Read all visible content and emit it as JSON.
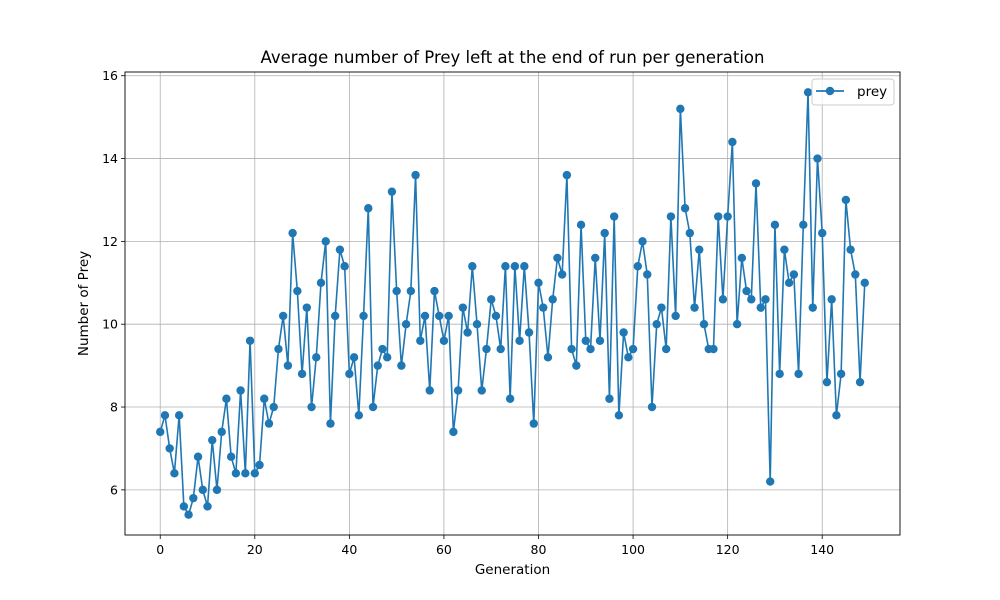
{
  "chart_data": {
    "type": "line",
    "title": "Average number of Prey left at the end of run per generation",
    "xlabel": "Generation",
    "ylabel": "Number of Prey",
    "xlim": [
      -7.45,
      156.45
    ],
    "ylim": [
      4.91,
      16.09
    ],
    "xticks": [
      0,
      20,
      40,
      60,
      80,
      100,
      120,
      140
    ],
    "yticks": [
      6,
      8,
      10,
      12,
      14,
      16
    ],
    "grid": true,
    "legend_position": "upper right",
    "series": [
      {
        "name": "prey",
        "color": "#1f77b4",
        "marker": "circle",
        "x": [
          0,
          1,
          2,
          3,
          4,
          5,
          6,
          7,
          8,
          9,
          10,
          11,
          12,
          13,
          14,
          15,
          16,
          17,
          18,
          19,
          20,
          21,
          22,
          23,
          24,
          25,
          26,
          27,
          28,
          29,
          30,
          31,
          32,
          33,
          34,
          35,
          36,
          37,
          38,
          39,
          40,
          41,
          42,
          43,
          44,
          45,
          46,
          47,
          48,
          49,
          50,
          51,
          52,
          53,
          54,
          55,
          56,
          57,
          58,
          59,
          60,
          61,
          62,
          63,
          64,
          65,
          66,
          67,
          68,
          69,
          70,
          71,
          72,
          73,
          74,
          75,
          76,
          77,
          78,
          79,
          80,
          81,
          82,
          83,
          84,
          85,
          86,
          87,
          88,
          89,
          90,
          91,
          92,
          93,
          94,
          95,
          96,
          97,
          98,
          99,
          100,
          101,
          102,
          103,
          104,
          105,
          106,
          107,
          108,
          109,
          110,
          111,
          112,
          113,
          114,
          115,
          116,
          117,
          118,
          119,
          120,
          121,
          122,
          123,
          124,
          125,
          126,
          127,
          128,
          129,
          130,
          131,
          132,
          133,
          134,
          135,
          136,
          137,
          138,
          139,
          140,
          141,
          142,
          143,
          144,
          145,
          146,
          147,
          148,
          149
        ],
        "y": [
          7.4,
          7.8,
          7.0,
          6.4,
          7.8,
          5.6,
          5.4,
          5.8,
          6.8,
          6.0,
          5.6,
          7.2,
          6.0,
          7.4,
          8.2,
          6.8,
          6.4,
          8.4,
          6.4,
          9.6,
          6.4,
          6.6,
          8.2,
          7.6,
          8.0,
          9.4,
          10.2,
          9.0,
          12.2,
          10.8,
          8.8,
          10.4,
          8.0,
          9.2,
          11.0,
          12.0,
          7.6,
          10.2,
          11.8,
          11.4,
          8.8,
          9.2,
          7.8,
          10.2,
          12.8,
          8.0,
          9.0,
          9.4,
          9.2,
          13.2,
          10.8,
          9.0,
          10.0,
          10.8,
          13.6,
          9.6,
          10.2,
          8.4,
          10.8,
          10.2,
          9.6,
          10.2,
          7.4,
          8.4,
          10.4,
          9.8,
          11.4,
          10.0,
          8.4,
          9.4,
          10.6,
          10.2,
          9.4,
          11.4,
          8.2,
          11.4,
          9.6,
          11.4,
          9.8,
          7.6,
          11.0,
          10.4,
          9.2,
          10.6,
          11.6,
          11.2,
          13.6,
          9.4,
          9.0,
          12.4,
          9.6,
          9.4,
          11.6,
          9.6,
          12.2,
          8.2,
          12.6,
          7.8,
          9.8,
          9.2,
          9.4,
          11.4,
          12.0,
          11.2,
          8.0,
          10.0,
          10.4,
          9.4,
          12.6,
          10.2,
          15.2,
          12.8,
          12.2,
          10.4,
          11.8,
          10.0,
          9.4,
          9.4,
          12.6,
          10.6,
          12.6,
          14.4,
          10.0,
          11.6,
          10.8,
          10.6,
          13.4,
          10.4,
          10.6,
          6.2,
          12.4,
          8.8,
          11.8,
          11.0,
          11.2,
          8.8,
          12.4,
          15.6,
          10.4,
          14.0,
          12.2,
          8.6,
          10.6,
          7.8,
          8.8,
          13.0,
          11.8,
          11.2,
          8.6,
          11.0
        ]
      }
    ]
  }
}
